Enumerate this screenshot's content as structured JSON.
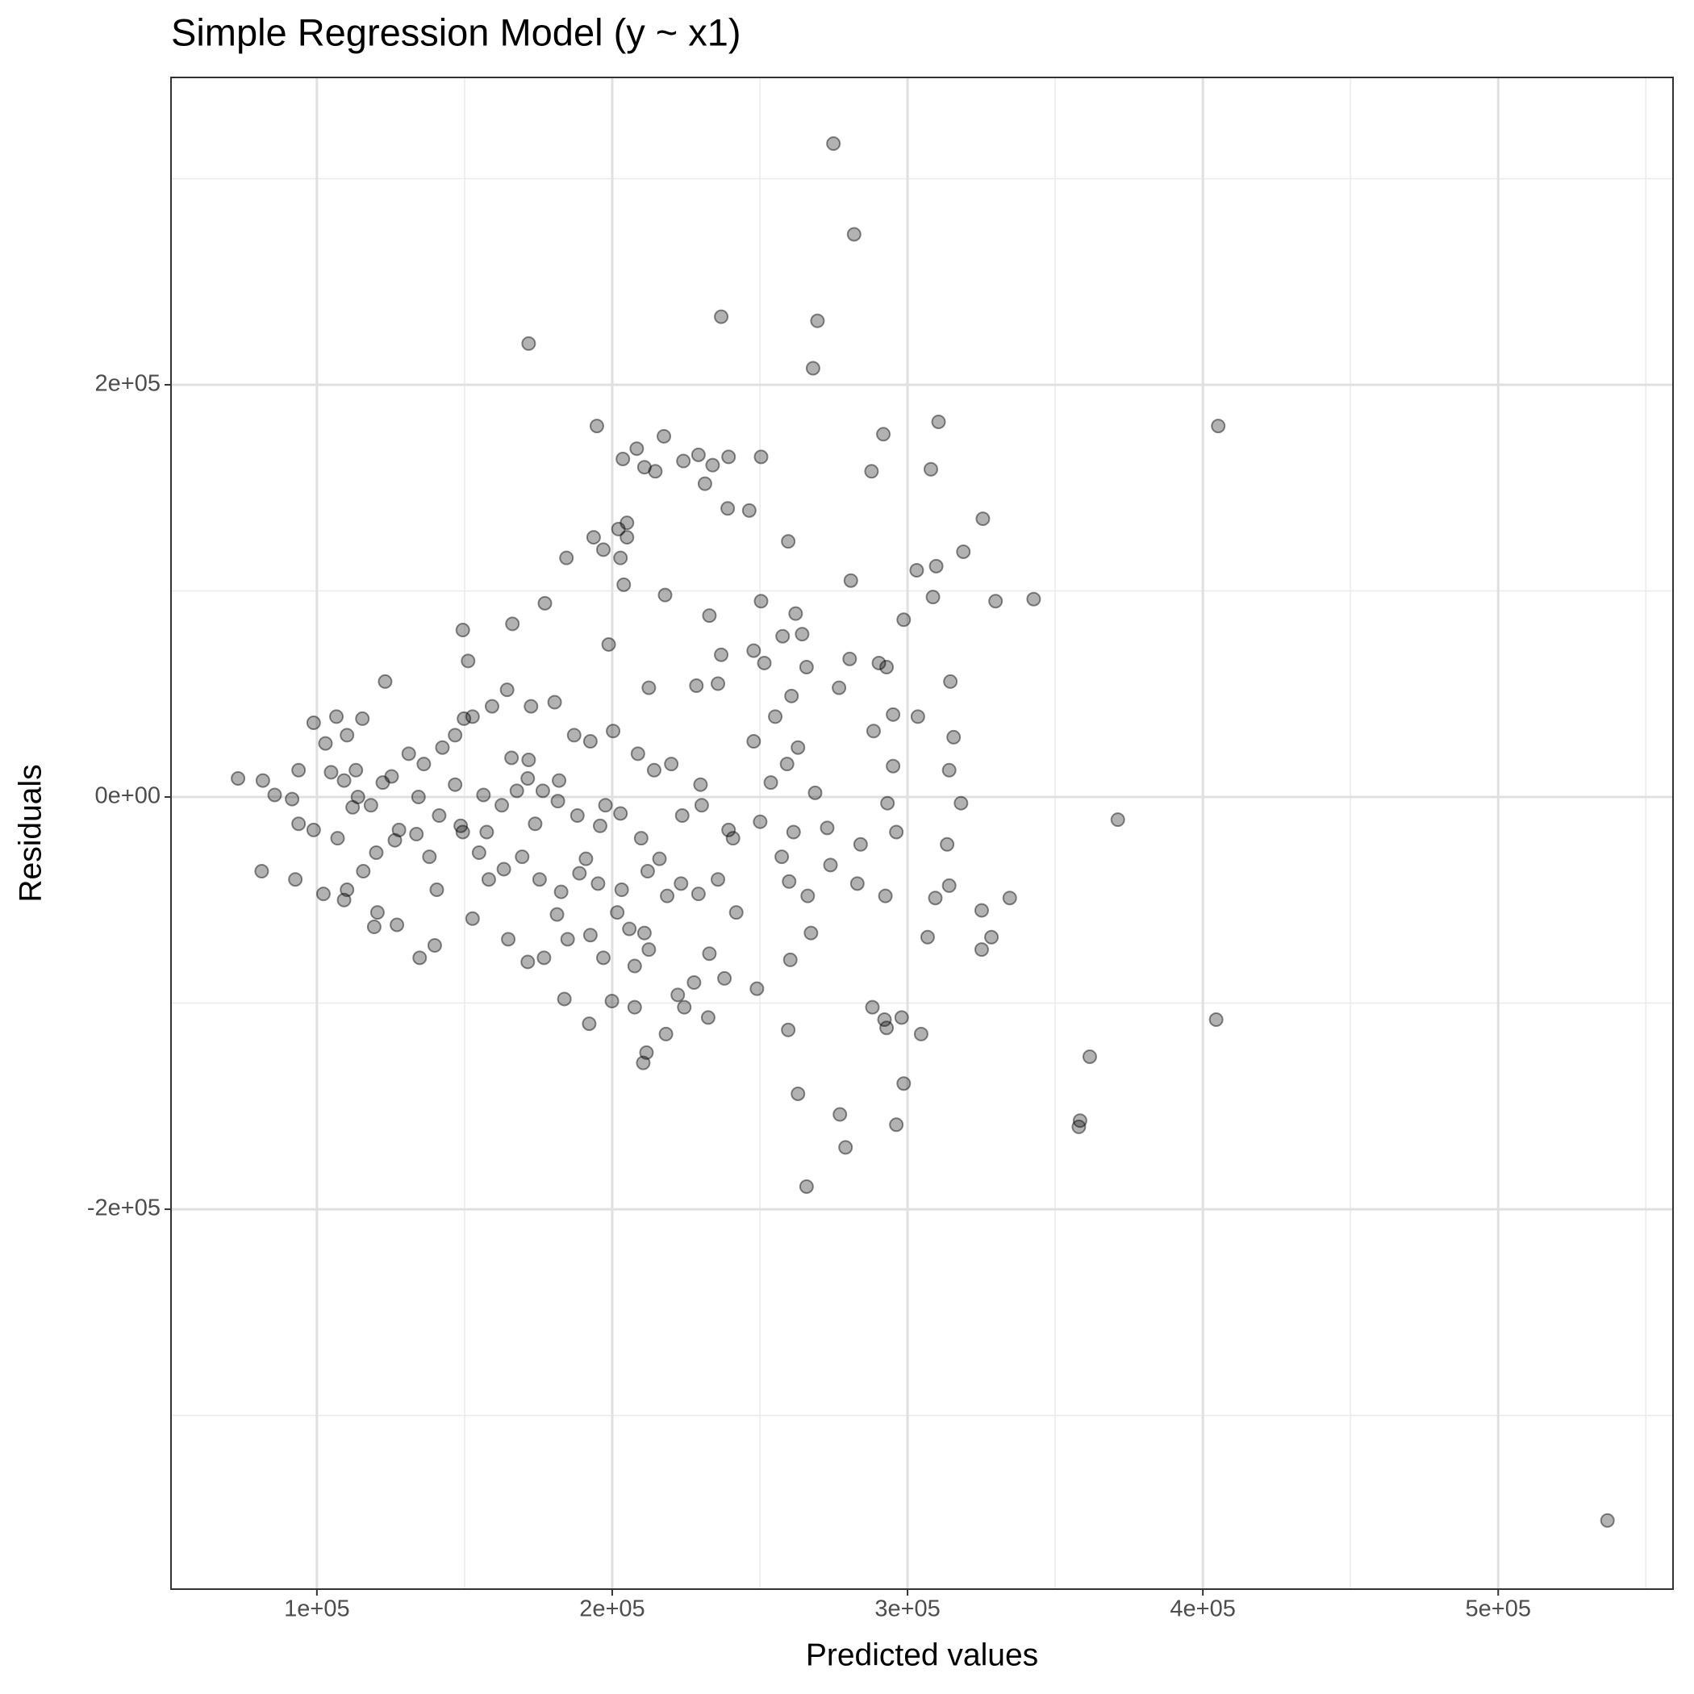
{
  "chart_data": {
    "type": "scatter",
    "title": "Simple Regression Model (y ~ x1)",
    "x_label": "Predicted values",
    "y_label": "Residuals",
    "color": "#000000",
    "grid": true,
    "xlim": [
      50600,
      559200
    ],
    "ylim": [
      -384300,
      349100
    ],
    "xticks": [
      {
        "value": 100000,
        "label": "1e+05"
      },
      {
        "value": 200000,
        "label": "2e+05"
      },
      {
        "value": 300000,
        "label": "3e+05"
      },
      {
        "value": 400000,
        "label": "4e+05"
      },
      {
        "value": 500000,
        "label": "5e+05"
      }
    ],
    "yticks": [
      {
        "value": -200000,
        "label": "-2e+05"
      },
      {
        "value": 0,
        "label": "0e+00"
      },
      {
        "value": 200000,
        "label": "2e+05"
      }
    ],
    "x_minor_grid": [
      150000,
      250000,
      350000,
      450000,
      550000
    ],
    "y_minor_grid": [
      -300000,
      -100000,
      100000,
      300000
    ],
    "x": [
      274900,
      281900,
      236900,
      269500,
      171700,
      268000,
      405200,
      194800,
      310500,
      291800,
      217500,
      208300,
      229200,
      239400,
      250400,
      203600,
      210900,
      214600,
      224100,
      234000,
      287800,
      307900,
      231400,
      239100,
      246400,
      325500,
      205000,
      202100,
      205000,
      259600,
      318900,
      309700,
      303100,
      184500,
      193700,
      202800,
      197000,
      280800,
      342700,
      329800,
      308600,
      250400,
      217900,
      177200,
      203900,
      298700,
      232900,
      262100,
      264300,
      257700,
      166200,
      149400,
      247900,
      236900,
      251500,
      198800,
      290300,
      280400,
      292900,
      314500,
      276800,
      265800,
      235800,
      228500,
      212400,
      260700,
      123100,
      295100,
      303500,
      255200,
      315600,
      288500,
      247900,
      262900,
      314100,
      295100,
      259200,
      253700,
      268700,
      318100,
      371200,
      293200,
      296200,
      272800,
      261400,
      250100,
      240900,
      230300,
      223700,
      239400,
      313400,
      284100,
      273900,
      257400,
      259900,
      283000,
      314100,
      266200,
      292500,
      309400,
      334600,
      325100,
      267300,
      306800,
      328400,
      260300,
      325100,
      242000,
      249000,
      232900,
      238000,
      232500,
      227700,
      222200,
      224400,
      218200,
      211600,
      210500,
      207600,
      199900,
      192200,
      183800,
      259600,
      288100,
      292200,
      292900,
      298000,
      304600,
      404500,
      361700,
      262900,
      298700,
      277100,
      296200,
      358400,
      358000,
      279000,
      265800,
      537000,
      81300,
      73300,
      81700,
      92700,
      85700,
      91600,
      93800,
      98900,
      102900,
      106600,
      110200,
      115400,
      109200,
      104800,
      113900,
      118300,
      125300,
      131100,
      136200,
      142500,
      146800,
      152700,
      159300,
      164400,
      172500,
      180500,
      187100,
      192600,
      200300,
      208700,
      214200,
      220000,
      229900,
      151200,
      149800,
      165900,
      171400,
      176500,
      181600,
      188200,
      195900,
      202800,
      209800,
      216000,
      223300,
      229200,
      235800,
      93800,
      98900,
      102200,
      109200,
      115700,
      120100,
      126400,
      133700,
      138100,
      140600,
      149400,
      154900,
      158200,
      163300,
      169500,
      175400,
      182700,
      188900,
      195200,
      201700,
      205800,
      210900,
      218600,
      152700,
      164800,
      171400,
      176900,
      181300,
      184900,
      192600,
      197000,
      207600,
      212400,
      119400,
      127100,
      134800,
      139900,
      110200,
      120500,
      113200,
      134400,
      146800,
      156400,
      167700,
      171700,
      182000,
      197700,
      148700,
      141400,
      122300,
      107000,
      112100,
      127800,
      157500,
      162600,
      173900,
      191100,
      203200,
      212000
    ],
    "values": [
      317000,
      273000,
      233000,
      231000,
      220000,
      208000,
      180000,
      180000,
      182000,
      176000,
      175000,
      169000,
      166000,
      165000,
      165000,
      164000,
      160000,
      158000,
      163000,
      161000,
      158000,
      159000,
      152000,
      140000,
      139000,
      135000,
      133000,
      130000,
      126000,
      124000,
      119000,
      112000,
      110000,
      116000,
      126000,
      116000,
      120000,
      105000,
      96000,
      95000,
      97000,
      95000,
      98000,
      94000,
      103000,
      86000,
      88000,
      89000,
      79000,
      78000,
      84000,
      81000,
      71000,
      69000,
      65000,
      74000,
      65000,
      67000,
      63000,
      56000,
      53000,
      63000,
      55000,
      54000,
      53000,
      49000,
      56000,
      40000,
      39000,
      39000,
      29000,
      32000,
      27000,
      24000,
      13000,
      15000,
      16000,
      7000,
      2000,
      -3000,
      -11000,
      -3000,
      -17000,
      -15000,
      -17000,
      -12000,
      -20000,
      -4000,
      -9000,
      -16000,
      -23000,
      -23000,
      -33000,
      -29000,
      -41000,
      -42000,
      -43000,
      -48000,
      -48000,
      -49000,
      -49000,
      -55000,
      -66000,
      -68000,
      -68000,
      -79000,
      -74000,
      -56000,
      -93000,
      -76000,
      -88000,
      -107000,
      -90000,
      -96000,
      -102000,
      -115000,
      -124000,
      -129000,
      -102000,
      -99000,
      -110000,
      -98000,
      -113000,
      -102000,
      -108000,
      -112000,
      -107000,
      -115000,
      -108000,
      -126000,
      -144000,
      -139000,
      -154000,
      -159000,
      -157000,
      -160000,
      -170000,
      -189000,
      -351000,
      -36000,
      9000,
      8000,
      -40000,
      1000,
      -1000,
      13000,
      36000,
      26000,
      39000,
      30000,
      38000,
      8000,
      12000,
      0,
      -4000,
      10000,
      21000,
      16000,
      24000,
      30000,
      39000,
      44000,
      52000,
      44000,
      46000,
      30000,
      27000,
      32000,
      21000,
      13000,
      16000,
      6000,
      66000,
      38000,
      19000,
      9000,
      3000,
      -2000,
      -9000,
      -14000,
      -8000,
      -20000,
      -30000,
      -42000,
      -47000,
      -40000,
      -13000,
      -16000,
      -47000,
      -50000,
      -36000,
      -27000,
      -21000,
      -18000,
      -29000,
      -45000,
      -17000,
      -27000,
      -40000,
      -35000,
      -29000,
      -40000,
      -46000,
      -37000,
      -42000,
      -56000,
      -64000,
      -66000,
      -48000,
      -59000,
      -69000,
      -80000,
      -78000,
      -57000,
      -69000,
      -67000,
      -78000,
      -82000,
      -74000,
      -63000,
      -62000,
      -78000,
      -72000,
      -45000,
      -56000,
      13000,
      0,
      6000,
      1000,
      3000,
      18000,
      8000,
      -4000,
      -14000,
      -9000,
      7000,
      -20000,
      -5000,
      -16000,
      -17000,
      -4000,
      -13000,
      -30000,
      -45000,
      -36000
    ]
  }
}
